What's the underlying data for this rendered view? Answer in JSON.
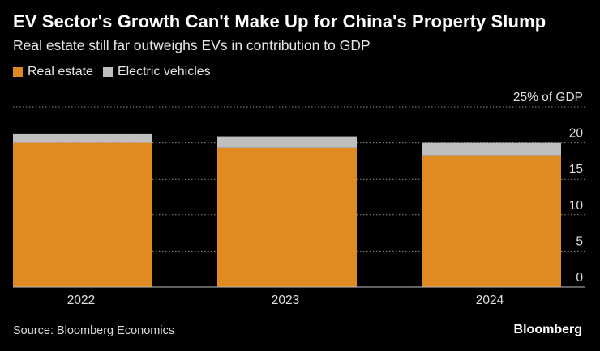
{
  "header": {
    "title": "EV Sector's Growth Can't Make Up for China's Property Slump",
    "subtitle": "Real estate still far outweighs EVs in contribution to GDP"
  },
  "legend": [
    {
      "label": "Real estate",
      "color": "#e08a22"
    },
    {
      "label": "Electric vehicles",
      "color": "#bfbfbf"
    }
  ],
  "chart_data": {
    "type": "bar",
    "stacked": true,
    "title": "EV Sector's Growth Can't Make Up for China's Property Slump",
    "subtitle": "Real estate still far outweighs EVs in contribution to GDP",
    "categories": [
      "2022",
      "2023",
      "2024"
    ],
    "series": [
      {
        "name": "Real estate",
        "color": "#e08a22",
        "values": [
          20.0,
          19.3,
          18.2
        ]
      },
      {
        "name": "Electric vehicles",
        "color": "#bfbfbf",
        "values": [
          1.2,
          1.6,
          1.8
        ]
      }
    ],
    "ylim": [
      0,
      25
    ],
    "yticks": [
      0,
      5,
      10,
      15,
      20,
      25
    ],
    "ytick_labels": [
      "0",
      "5",
      "10",
      "15",
      "20",
      "25% of GDP"
    ],
    "ylabel": "% of GDP",
    "xlabel": "",
    "grid": true,
    "legend_position": "top-left"
  },
  "footer": {
    "source": "Source: Bloomberg Economics",
    "brand": "Bloomberg"
  }
}
